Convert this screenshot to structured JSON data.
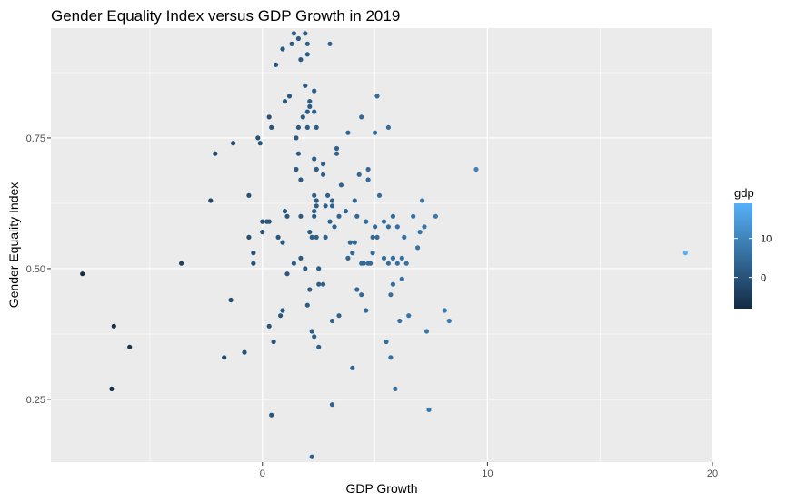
{
  "chart_data": {
    "type": "scatter",
    "title": "Gender Equality Index versus GDP Growth in 2019",
    "xlabel": "GDP Growth",
    "ylabel": "Gender Equality Index",
    "xlim": [
      -9.4,
      20.0
    ],
    "ylim": [
      0.13,
      0.96
    ],
    "xticks": [
      0,
      10,
      20
    ],
    "xtick_labels": [
      "0",
      "10",
      "20"
    ],
    "yticks": [
      0.25,
      0.5,
      0.75
    ],
    "ytick_labels": [
      "0.25",
      "0.50",
      "0.75"
    ],
    "grid": true,
    "background": "#ebebeb",
    "legend": {
      "title": "gdp",
      "position": "right",
      "type": "colorbar",
      "breaks": [
        0,
        10
      ],
      "labels": [
        "0",
        "10"
      ],
      "range": [
        -8.0,
        19.0
      ],
      "low_color": "#132b43",
      "high_color": "#56b1f7"
    },
    "points": [
      [
        -8.0,
        0.49
      ],
      [
        -6.7,
        0.27
      ],
      [
        -6.6,
        0.39
      ],
      [
        -5.9,
        0.35
      ],
      [
        -3.6,
        0.51
      ],
      [
        -2.3,
        0.63
      ],
      [
        -2.1,
        0.72
      ],
      [
        -1.7,
        0.33
      ],
      [
        -1.4,
        0.44
      ],
      [
        -1.3,
        0.74
      ],
      [
        -0.8,
        0.34
      ],
      [
        -0.6,
        0.64
      ],
      [
        -0.6,
        0.56
      ],
      [
        -0.4,
        0.51
      ],
      [
        -0.4,
        0.53
      ],
      [
        -0.2,
        0.75
      ],
      [
        -0.1,
        0.74
      ],
      [
        0.0,
        0.57
      ],
      [
        0.0,
        0.59
      ],
      [
        0.2,
        0.59
      ],
      [
        0.3,
        0.59
      ],
      [
        0.3,
        0.39
      ],
      [
        0.3,
        0.79
      ],
      [
        0.4,
        0.22
      ],
      [
        0.4,
        0.77
      ],
      [
        0.5,
        0.36
      ],
      [
        0.6,
        0.89
      ],
      [
        0.7,
        0.56
      ],
      [
        0.8,
        0.41
      ],
      [
        0.9,
        0.42
      ],
      [
        0.9,
        0.55
      ],
      [
        0.9,
        0.92
      ],
      [
        1.0,
        0.82
      ],
      [
        1.0,
        0.61
      ],
      [
        1.1,
        0.6
      ],
      [
        1.1,
        0.49
      ],
      [
        1.2,
        0.83
      ],
      [
        1.3,
        0.93
      ],
      [
        1.4,
        0.95
      ],
      [
        1.4,
        0.51
      ],
      [
        1.5,
        0.75
      ],
      [
        1.5,
        0.69
      ],
      [
        1.6,
        0.77
      ],
      [
        1.6,
        0.72
      ],
      [
        1.6,
        0.94
      ],
      [
        1.7,
        0.9
      ],
      [
        1.7,
        0.6
      ],
      [
        1.7,
        0.52
      ],
      [
        1.7,
        0.67
      ],
      [
        1.8,
        0.79
      ],
      [
        1.9,
        0.85
      ],
      [
        1.9,
        0.95
      ],
      [
        1.9,
        0.5
      ],
      [
        2.0,
        0.43
      ],
      [
        2.0,
        0.91
      ],
      [
        2.0,
        0.77
      ],
      [
        2.0,
        0.93
      ],
      [
        2.0,
        0.8
      ],
      [
        2.1,
        0.57
      ],
      [
        2.1,
        0.82
      ],
      [
        2.1,
        0.81
      ],
      [
        2.1,
        0.46
      ],
      [
        2.2,
        0.38
      ],
      [
        2.2,
        0.56
      ],
      [
        2.2,
        0.14
      ],
      [
        2.3,
        0.64
      ],
      [
        2.3,
        0.61
      ],
      [
        2.3,
        0.84
      ],
      [
        2.3,
        0.8
      ],
      [
        2.3,
        0.71
      ],
      [
        2.3,
        0.6
      ],
      [
        2.3,
        0.37
      ],
      [
        2.4,
        0.63
      ],
      [
        2.4,
        0.69
      ],
      [
        2.4,
        0.62
      ],
      [
        2.4,
        0.69
      ],
      [
        2.4,
        0.77
      ],
      [
        2.4,
        0.56
      ],
      [
        2.5,
        0.5
      ],
      [
        2.5,
        0.47
      ],
      [
        2.5,
        0.35
      ],
      [
        2.7,
        0.47
      ],
      [
        2.7,
        0.68
      ],
      [
        2.7,
        0.7
      ],
      [
        2.8,
        0.56
      ],
      [
        2.8,
        0.62
      ],
      [
        2.9,
        0.64
      ],
      [
        3.0,
        0.93
      ],
      [
        3.0,
        0.59
      ],
      [
        3.1,
        0.24
      ],
      [
        3.1,
        0.62
      ],
      [
        3.1,
        0.63
      ],
      [
        3.1,
        0.4
      ],
      [
        3.2,
        0.58
      ],
      [
        3.3,
        0.73
      ],
      [
        3.3,
        0.72
      ],
      [
        3.4,
        0.41
      ],
      [
        3.4,
        0.6
      ],
      [
        3.5,
        0.66
      ],
      [
        3.7,
        0.61
      ],
      [
        3.8,
        0.76
      ],
      [
        3.8,
        0.52
      ],
      [
        3.9,
        0.55
      ],
      [
        4.0,
        0.53
      ],
      [
        4.0,
        0.31
      ],
      [
        4.1,
        0.63
      ],
      [
        4.1,
        0.55
      ],
      [
        4.2,
        0.46
      ],
      [
        4.2,
        0.6
      ],
      [
        4.3,
        0.68
      ],
      [
        4.4,
        0.79
      ],
      [
        4.4,
        0.45
      ],
      [
        4.4,
        0.51
      ],
      [
        4.5,
        0.51
      ],
      [
        4.6,
        0.42
      ],
      [
        4.6,
        0.59
      ],
      [
        4.7,
        0.69
      ],
      [
        4.7,
        0.67
      ],
      [
        4.7,
        0.51
      ],
      [
        4.8,
        0.51
      ],
      [
        4.9,
        0.53
      ],
      [
        4.9,
        0.56
      ],
      [
        5.0,
        0.76
      ],
      [
        5.0,
        0.58
      ],
      [
        5.1,
        0.56
      ],
      [
        5.1,
        0.83
      ],
      [
        5.2,
        0.64
      ],
      [
        5.4,
        0.52
      ],
      [
        5.4,
        0.59
      ],
      [
        5.5,
        0.36
      ],
      [
        5.6,
        0.77
      ],
      [
        5.6,
        0.58
      ],
      [
        5.6,
        0.51
      ],
      [
        5.7,
        0.33
      ],
      [
        5.7,
        0.45
      ],
      [
        5.8,
        0.6
      ],
      [
        5.8,
        0.52
      ],
      [
        5.8,
        0.47
      ],
      [
        5.9,
        0.27
      ],
      [
        6.0,
        0.58
      ],
      [
        6.0,
        0.51
      ],
      [
        6.1,
        0.4
      ],
      [
        6.2,
        0.52
      ],
      [
        6.2,
        0.48
      ],
      [
        6.3,
        0.56
      ],
      [
        6.4,
        0.51
      ],
      [
        6.5,
        0.41
      ],
      [
        6.7,
        0.6
      ],
      [
        6.9,
        0.54
      ],
      [
        7.0,
        0.57
      ],
      [
        7.1,
        0.63
      ],
      [
        7.2,
        0.58
      ],
      [
        7.3,
        0.38
      ],
      [
        7.4,
        0.23
      ],
      [
        7.7,
        0.6
      ],
      [
        8.1,
        0.42
      ],
      [
        8.3,
        0.4
      ],
      [
        9.5,
        0.69
      ],
      [
        18.8,
        0.53
      ]
    ]
  }
}
